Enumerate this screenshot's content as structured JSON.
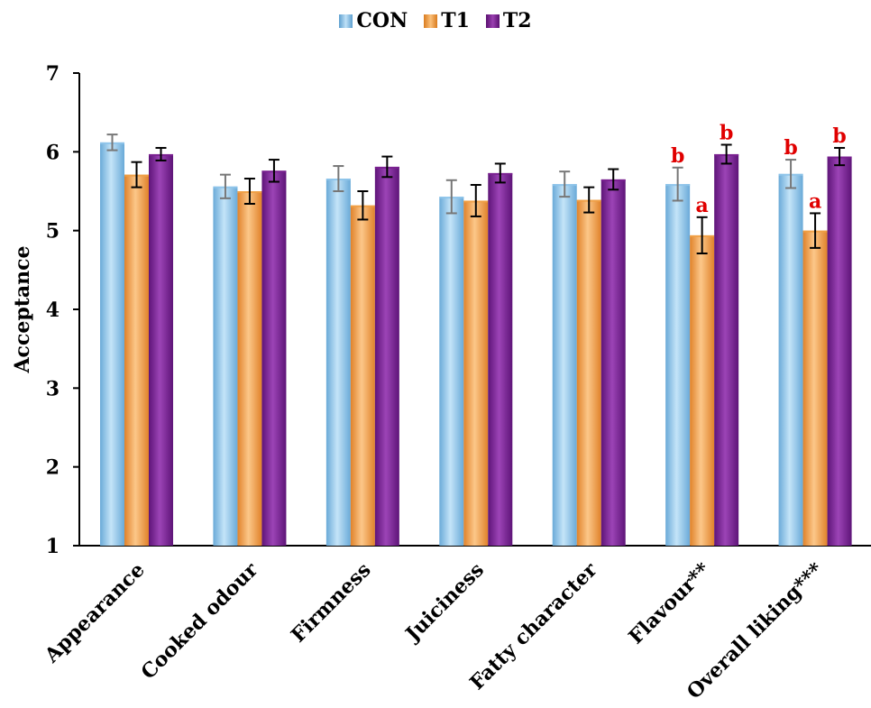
{
  "chart_data": {
    "type": "bar",
    "title": "",
    "xlabel": "",
    "ylabel": "Acceptance",
    "ylim": [
      1,
      7
    ],
    "yticks": [
      1,
      2,
      3,
      4,
      5,
      6,
      7
    ],
    "grid": false,
    "legend_position": "top-center",
    "categories": [
      "Appearance",
      "Cooked odour",
      "Firmness",
      "Juiciness",
      "Fatty character",
      "Flavour**",
      "Overall liking***"
    ],
    "series": [
      {
        "name": "CON",
        "color": "#8ec4ea",
        "values": [
          6.12,
          5.56,
          5.66,
          5.43,
          5.59,
          5.59,
          5.72
        ],
        "errors": [
          0.1,
          0.15,
          0.16,
          0.21,
          0.16,
          0.21,
          0.18
        ],
        "annotations": [
          "",
          "",
          "",
          "",
          "",
          "b",
          "b"
        ]
      },
      {
        "name": "T1",
        "color": "#f0a045",
        "values": [
          5.71,
          5.5,
          5.32,
          5.38,
          5.39,
          4.94,
          5.0
        ],
        "errors": [
          0.16,
          0.16,
          0.18,
          0.2,
          0.16,
          0.23,
          0.22
        ],
        "annotations": [
          "",
          "",
          "",
          "",
          "",
          "a",
          "a"
        ]
      },
      {
        "name": "T2",
        "color": "#7a2090",
        "values": [
          5.97,
          5.76,
          5.81,
          5.73,
          5.65,
          5.97,
          5.94
        ],
        "errors": [
          0.08,
          0.14,
          0.13,
          0.12,
          0.13,
          0.12,
          0.11
        ],
        "annotations": [
          "",
          "",
          "",
          "",
          "",
          "b",
          "b"
        ]
      }
    ],
    "annotation_color": "#e00000"
  }
}
